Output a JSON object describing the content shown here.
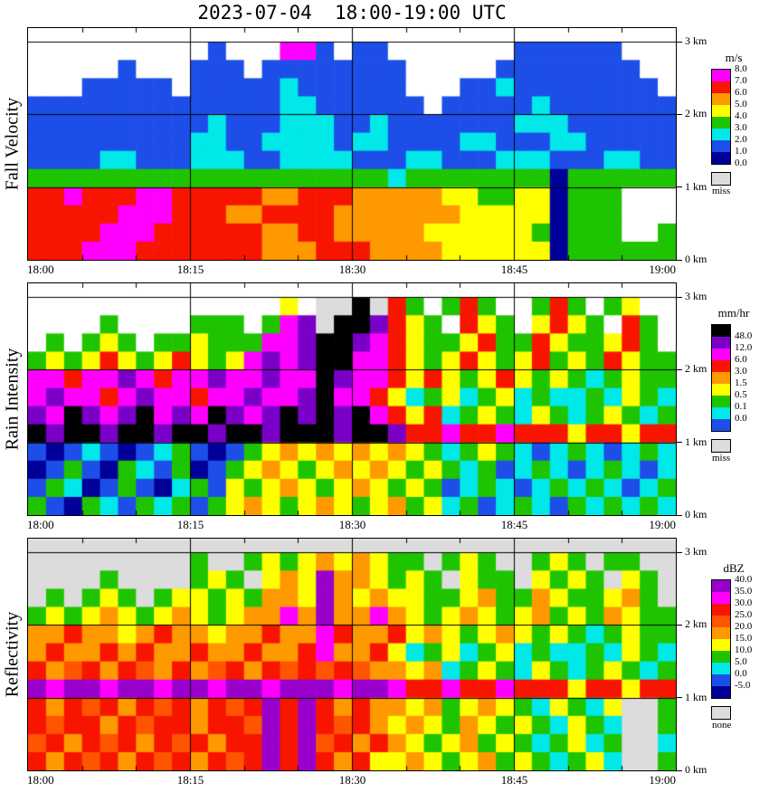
{
  "chart_data": {
    "type": "heatmap",
    "title": "2023-07-04  18:00-19:00 UTC",
    "x_ticks": [
      "18:00",
      "18:15",
      "18:30",
      "18:45",
      "19:00"
    ],
    "x_minor_step_min": 5,
    "y_ticks": [
      "0 km",
      "1 km",
      "2 km",
      "3 km"
    ],
    "y_km_max_plot": 3.19,
    "grid_cols": 36,
    "grid_rows": 12,
    "grid_km_top": 3.0,
    "grid_km_bottom": 0.0,
    "panels": [
      {
        "name": "Fall Velocity",
        "unit": "m/s",
        "background": "#FFFFFF",
        "palette": {
          ".": "#FFFFFF",
          "a": "#000099",
          "b": "#1D4FE8",
          "c": "#00E8E8",
          "d": "#1FC400",
          "e": "#FFFF00",
          "f": "#FF9900",
          "g": "#F81500",
          "h": "#FF00FF"
        },
        "code_values_mps": {
          ".": "no echo",
          "a": "0-1",
          "b": "1-2",
          "c": "2-3",
          "d": "3-4",
          "e": "4-5",
          "f": "5-6",
          "g": "6-7",
          "h": "7-8"
        },
        "rows": [
          "10.1b3.2h1b1.2b7.6b3.",
          "5.1b3.3b1.8b5.8b2.",
          "3.5b1.5b1c6b3.2b1c8b1.",
          "14b2c6b1.5b1c7b",
          "10b1c3b3c2b1c7b3c6b",
          "9b2c2b4c1b2c4b2c3b2c5b",
          "4b2c3b3c2b4c3b2c3b3c3b2c2b",
          "20d1c8d1a6d",
          "2g1h3g2h5g2f3g5f2e2d2e1a3d3.",
          "5g3h3g2f4g7f5e1a3d3.",
          "4g3h6g2f2g5f6e1d1a3d2.1d",
          "3g3h7g3f3g4f6e1a6d"
        ],
        "legend": {
          "cells": [
            "#FF00FF",
            "#F81500",
            "#FF9900",
            "#FFFF00",
            "#1FC400",
            "#00E8E8",
            "#1D4FE8",
            "#000099"
          ],
          "labels": [
            "8.0",
            "7.0",
            "6.0",
            "5.0",
            "4.0",
            "3.0",
            "2.0",
            "1.0",
            "0.0"
          ],
          "label_mode": "edges",
          "extra_label": "miss",
          "extra_color": "#DCDCDC"
        }
      },
      {
        "name": "Rain Intensity",
        "unit": "mm/hr",
        "background": "#FFFFFF",
        "palette": {
          ".": "#FFFFFF",
          "x": "#DCDCDC",
          "k": "#000000",
          "v": "#7A00C8",
          "m": "#FF00FF",
          "r": "#F81500",
          "o": "#FF9900",
          "y": "#FFFF00",
          "g": "#1FC400",
          "c": "#00E8E8",
          "u": "#1D4FE8",
          "a": "#000099"
        },
        "code_values_mmhr": {
          ".": "no echo",
          "x": "miss",
          "k": ">48",
          "v": "12-48",
          "m": "6-12",
          "r": "3-6",
          "o": "1.5-3",
          "y": "0.5-1.5",
          "g": "0.1-0.5",
          "c": "0-0.1",
          "u": "trace",
          "a": "trace"
        },
        "rows": [
          "14.1y1.2x1k1x1r1g1.1g1r1g2.1g1r1g1.1g1y2.",
          "4.1g4.3g1.1g1m1v1x2k1v1r1y1g1.1r1y1g1.1y1r1y1g1.1r1g1.",
          "1.1g1.1g1y1g1.2g1y3g2m1v2k1v1m1r1y2g1y1r2g1r1y2g1y1r1g1.",
          "1g1y1g1y1r1y1g1y1r1y1g1y1m1v1m1v2k2m1r1y1g1y1r1y1g1y1r1g1y1g1r1y2g",
          "2m1r2m1v1m1r2m1v2m1v2m1k1v2m1r1y1r1y1g1y1r1y1g1y1g1c1g1y2g",
          "1m1v2m1r1m1v2m1r2m1v2m1v1k2m1r1y1c1g1y1c1g1y1c1g2c1g1c1y1g1c",
          "1v1m1k1v1m1v1k1m1v1m1k1v1m1v1k1v1k1v1k1m1r1y1r1c1g1y1g1c1y1g1c1g1y1g1c1g",
          "1k1v2k1v2k1v2k1v2k1v3k1v2k1v2r1m2r1m2r1r1y2r1y2r",
          "1u1a1u1c1u1a1u1c1g1u1a1u1g1y1o1y1o1y1o1y1o1y1g1c1g1y1g1c1u1c1g1c1u1c1g1c",
          "1a1u1g1u1a1g1c1u1g1a1u1g1y1o1y1g1y1o1y1o1y1g1y1g1c1g1u1c1g1c1u1c1g1c1u1c",
          "1u1g1c1a1u1g1u1a1c1g1u1y1g1y1o1y1g1y1o1y1g1y1g1u1c1g1c1u1c1g1c1g1c1u1c1g",
          "1g1u1a1g1c1u1g1c1g1u1g1y1o1y1g1y1o1y1g1y1o1g1y1c1g1u1c1g1c1u1g1c1g1c1g1c"
        ],
        "legend": {
          "cells": [
            "#000000",
            "#7A00C8",
            "#FF00FF",
            "#F81500",
            "#FF9900",
            "#FFFF00",
            "#1FC400",
            "#00E8E8",
            "#1D4FE8"
          ],
          "labels": [
            "48.0",
            "12.0",
            "6.0",
            "3.0",
            "1.5",
            "0.5",
            "0.1",
            "0.0"
          ],
          "label_mode": "inner",
          "extra_label": "miss",
          "extra_color": "#DCDCDC"
        }
      },
      {
        "name": "Reflectivity",
        "unit": "dBZ",
        "background": "#DCDCDC",
        "palette": {
          "x": "#DCDCDC",
          "p": "#9900CC",
          "m": "#FF00FF",
          "r": "#F81500",
          "s": "#FF5500",
          "o": "#FF9900",
          "y": "#FFFF00",
          "g": "#1FC400",
          "c": "#00E8E8",
          "u": "#1D4FE8",
          "a": "#000099"
        },
        "code_values_dbz": {
          "x": "none",
          "p": ">40",
          "m": "35-40",
          "r": "30-35",
          "s": "25-30",
          "o": "20-25",
          "y": "15-20",
          "g": "10-15",
          "c": "5-10",
          "u": "0-5",
          "a": "-5-0"
        },
        "rows": [
          "9x1g2x1g1y1g1y1o1y1o1y2g1x1g1y1g2x1g1y1g1x2g2x",
          "4x1g4x1g1y1g1x1y1o1y1p2o1y1g1y1g1x1y2g1x1y1g1y1g1x1y1g1x",
          "1x1g1x1g1y1g1x1g2y1g1y1g2o1y1p1o1y1o2y2g1y1o2g1o1y2g1y1o1g1x",
          "1g1y1g1y1o1y1g1y1o1y1g1y2o1m1o1p2o1m1o1y1g1y1o1y1g1y1o1g1y1g1o1y2g",
          "2o1r2o1y1o1r2o1y2o1r2o1m1r2o1r1y1o1y1g1y1o1y1g1y1g1c1g1y2g",
          "1o1r2o1r1o1r2o1r2o1r2o1r1m2o1r1y1c1g1y1c1g1y1c1g2c1g1c1y1g1c",
          "1r1o1s1r1o1r1s1o1r1o1s1r1o1r1s1r1s1r1s1o1o1y1o1c1g1y1g1c1y1g1c1g1y1g1c1g",
          "1p1m2p1m2p1m2p1m2p1m3p1m2p1m2r1m2r1m2r1r1y2r1y2r",
          "1r1o1r1s1r1o1r1s1r1o1r1s1r1p1r1p1r1o1r1o1o1y1o1g1y1o1y1g1c1y1g1c1y2x1g",
          "1r1s2r1o1r1s2r1o2r1s1p1r1p1r1s1r1o1y1o1y1g1o1y1g1y1g1c1y1g1c2x1g",
          "1s1r1o1r1s1r1o1r1s1r1o2r1p1r1p1s1r1o1r1o1y1g1y1o1g1y1g1c1g1y1c1g2x1c",
          "1r1o1r1s1r1o1r1s1r1o1r1s1r1p1r1p1r1o1r1y1y1o1y1g1y1o1g1y1g1c1g1y1c2x1g"
        ],
        "legend": {
          "cells": [
            "#9900CC",
            "#FF00FF",
            "#F81500",
            "#FF5500",
            "#FF9900",
            "#FFFF00",
            "#1FC400",
            "#00E8E8",
            "#1D4FE8",
            "#000099"
          ],
          "labels": [
            "40.0",
            "35.0",
            "30.0",
            "25.0",
            "20.0",
            "15.0",
            "10.0",
            "5.0",
            "0.0",
            "-5.0"
          ],
          "label_mode": "edges",
          "extra_label": "none",
          "extra_color": "#DCDCDC"
        }
      }
    ]
  }
}
